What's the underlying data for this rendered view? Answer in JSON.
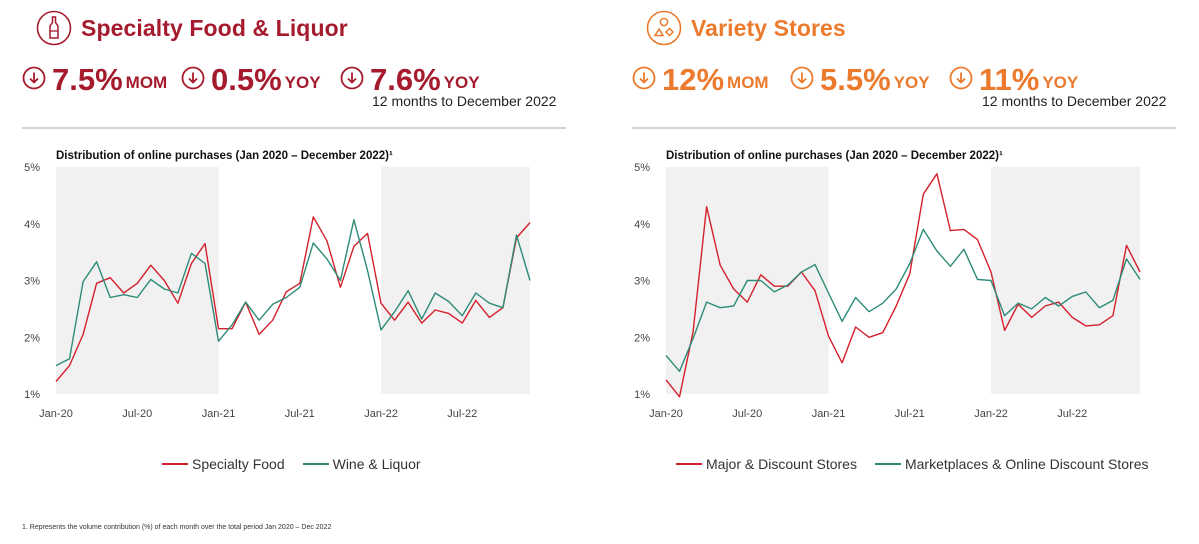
{
  "colors": {
    "specialty_red": "#a51b2d",
    "variety_orange": "#ec7a2d",
    "series_red": "#d4202b",
    "series_green": "#2e8b78",
    "shade": "#f1f1f1"
  },
  "left": {
    "icon": "bottle-icon",
    "title": "Specialty Food & Liquor",
    "metrics": [
      {
        "icon": "down-arrow-icon",
        "value": "7.5%",
        "unit": "MOM"
      },
      {
        "icon": "down-arrow-icon",
        "value": "0.5%",
        "unit": "YOY"
      },
      {
        "icon": "down-arrow-icon",
        "value": "7.6%",
        "unit": "YOY"
      }
    ],
    "note": "12 months to December 2022"
  },
  "right": {
    "icon": "shapes-icon",
    "title": "Variety Stores",
    "metrics": [
      {
        "icon": "down-arrow-icon",
        "value": "12%",
        "unit": "MOM"
      },
      {
        "icon": "down-arrow-icon",
        "value": "5.5%",
        "unit": "YOY"
      },
      {
        "icon": "down-arrow-icon",
        "value": "11%",
        "unit": "YOY"
      }
    ],
    "note": "12 months to December 2022"
  },
  "footnote": "1. Represents the volume contribution (%) of each month over the total period Jan 2020 – Dec 2022",
  "chart_data": [
    {
      "type": "line",
      "title": "Distribution of online purchases (Jan 2020 – December 2022)¹",
      "xlabel": "",
      "ylabel": "",
      "ylim": [
        1,
        5
      ],
      "yticks": [
        "1%",
        "2%",
        "3%",
        "4%",
        "5%"
      ],
      "xtick_labels": [
        {
          "index": 0,
          "label": "Jan-20"
        },
        {
          "index": 6,
          "label": "Jul-20"
        },
        {
          "index": 12,
          "label": "Jan-21"
        },
        {
          "index": 18,
          "label": "Jul-21"
        },
        {
          "index": 24,
          "label": "Jan-22"
        },
        {
          "index": 30,
          "label": "Jul-22"
        }
      ],
      "shaded_periods": [
        [
          0,
          12
        ],
        [
          24,
          35
        ]
      ],
      "grid": false,
      "legend_position": "bottom",
      "categories": [
        "Jan-20",
        "Feb-20",
        "Mar-20",
        "Apr-20",
        "May-20",
        "Jun-20",
        "Jul-20",
        "Aug-20",
        "Sep-20",
        "Oct-20",
        "Nov-20",
        "Dec-20",
        "Jan-21",
        "Feb-21",
        "Mar-21",
        "Apr-21",
        "May-21",
        "Jun-21",
        "Jul-21",
        "Aug-21",
        "Sep-21",
        "Oct-21",
        "Nov-21",
        "Dec-21",
        "Jan-22",
        "Feb-22",
        "Mar-22",
        "Apr-22",
        "May-22",
        "Jun-22",
        "Jul-22",
        "Aug-22",
        "Sep-22",
        "Oct-22",
        "Nov-22",
        "Dec-22"
      ],
      "series": [
        {
          "name": "Specialty Food",
          "color": "#d4202b",
          "values": [
            1.22,
            1.5,
            2.05,
            2.95,
            3.05,
            2.78,
            2.95,
            3.27,
            3.0,
            2.6,
            3.3,
            3.65,
            2.15,
            2.15,
            2.62,
            2.05,
            2.3,
            2.8,
            2.95,
            4.12,
            3.7,
            2.88,
            3.6,
            3.83,
            2.6,
            2.3,
            2.62,
            2.25,
            2.48,
            2.42,
            2.25,
            2.65,
            2.35,
            2.52,
            3.75,
            4.02
          ]
        },
        {
          "name": "Wine & Liquor",
          "color": "#2e8b78",
          "values": [
            1.5,
            1.62,
            2.98,
            3.33,
            2.7,
            2.75,
            2.7,
            3.02,
            2.85,
            2.78,
            3.48,
            3.3,
            1.93,
            2.22,
            2.62,
            2.3,
            2.58,
            2.7,
            2.88,
            3.66,
            3.38,
            3.0,
            4.07,
            3.18,
            2.13,
            2.45,
            2.82,
            2.32,
            2.78,
            2.63,
            2.38,
            2.78,
            2.6,
            2.52,
            3.8,
            3.0
          ]
        }
      ]
    },
    {
      "type": "line",
      "title": "Distribution of online purchases (Jan 2020 – December 2022)¹",
      "xlabel": "",
      "ylabel": "",
      "ylim": [
        1,
        5
      ],
      "yticks": [
        "1%",
        "2%",
        "3%",
        "4%",
        "5%"
      ],
      "xtick_labels": [
        {
          "index": 0,
          "label": "Jan-20"
        },
        {
          "index": 6,
          "label": "Jul-20"
        },
        {
          "index": 12,
          "label": "Jan-21"
        },
        {
          "index": 18,
          "label": "Jul-21"
        },
        {
          "index": 24,
          "label": "Jan-22"
        },
        {
          "index": 30,
          "label": "Jul-22"
        }
      ],
      "shaded_periods": [
        [
          0,
          12
        ],
        [
          24,
          35
        ]
      ],
      "grid": false,
      "legend_position": "bottom",
      "categories": [
        "Jan-20",
        "Feb-20",
        "Mar-20",
        "Apr-20",
        "May-20",
        "Jun-20",
        "Jul-20",
        "Aug-20",
        "Sep-20",
        "Oct-20",
        "Nov-20",
        "Dec-20",
        "Jan-21",
        "Feb-21",
        "Mar-21",
        "Apr-21",
        "May-21",
        "Jun-21",
        "Jul-21",
        "Aug-21",
        "Sep-21",
        "Oct-21",
        "Nov-21",
        "Dec-21",
        "Jan-22",
        "Feb-22",
        "Mar-22",
        "Apr-22",
        "May-22",
        "Jun-22",
        "Jul-22",
        "Aug-22",
        "Sep-22",
        "Oct-22",
        "Nov-22",
        "Dec-22"
      ],
      "series": [
        {
          "name": "Major & Discount Stores",
          "color": "#d4202b",
          "values": [
            1.25,
            0.95,
            2.1,
            4.3,
            3.27,
            2.85,
            2.62,
            3.1,
            2.9,
            2.9,
            3.15,
            2.82,
            2.02,
            1.55,
            2.18,
            2.0,
            2.08,
            2.55,
            3.12,
            4.52,
            4.88,
            3.88,
            3.9,
            3.72,
            3.15,
            2.12,
            2.58,
            2.35,
            2.55,
            2.62,
            2.35,
            2.2,
            2.22,
            2.38,
            3.62,
            3.15
          ]
        },
        {
          "name": "Marketplaces & Online Discount Stores",
          "color": "#2e8b78",
          "values": [
            1.68,
            1.4,
            1.98,
            2.62,
            2.52,
            2.55,
            3.0,
            3.0,
            2.8,
            2.92,
            3.15,
            3.28,
            2.78,
            2.28,
            2.7,
            2.45,
            2.6,
            2.85,
            3.3,
            3.9,
            3.52,
            3.25,
            3.55,
            3.02,
            3.0,
            2.38,
            2.6,
            2.5,
            2.7,
            2.55,
            2.72,
            2.8,
            2.52,
            2.65,
            3.38,
            3.02
          ]
        }
      ]
    }
  ]
}
